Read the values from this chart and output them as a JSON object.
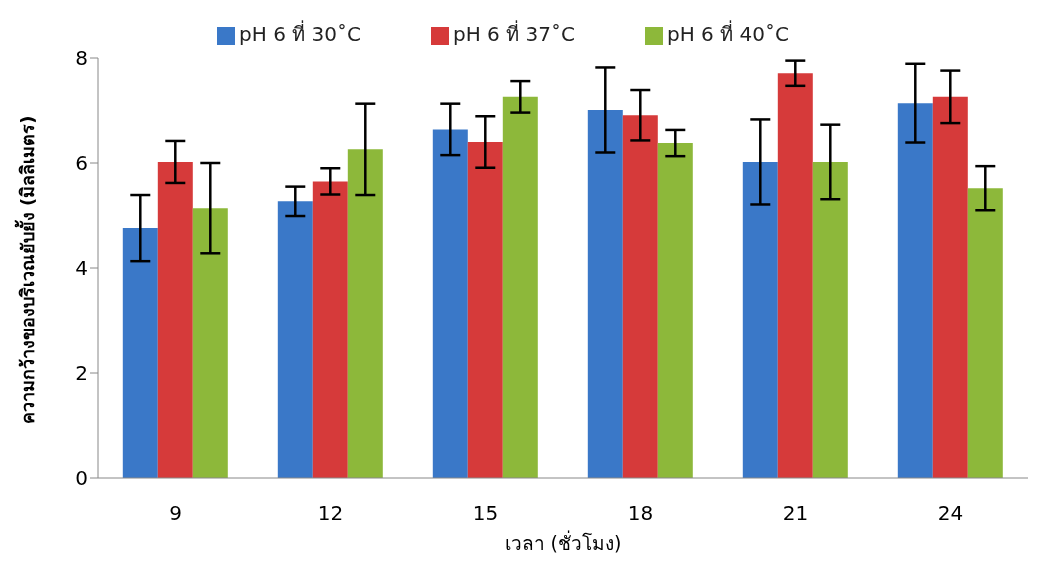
{
  "chart_data": {
    "type": "bar",
    "xlabel": "เวลา (ชั่วโมง)",
    "ylabel": "ความกว้างของบริเวณยับยั้ง (มิลลิเมตร)",
    "categories": [
      "9",
      "12",
      "15",
      "18",
      "21",
      "24"
    ],
    "series": [
      {
        "name": "pH 6 ที่ 30˚C",
        "color": "#3a78c8",
        "values": [
          4.76,
          5.27,
          6.64,
          7.01,
          6.02,
          7.14
        ],
        "errors": [
          0.63,
          0.28,
          0.49,
          0.81,
          0.81,
          0.75
        ]
      },
      {
        "name": "pH 6 ที่ 37˚C",
        "color": "#d63a3a",
        "values": [
          6.02,
          5.65,
          6.4,
          6.91,
          7.71,
          7.26
        ],
        "errors": [
          0.4,
          0.25,
          0.49,
          0.48,
          0.24,
          0.5
        ]
      },
      {
        "name": "pH 6 ที่ 40˚C",
        "color": "#8db83a",
        "values": [
          5.14,
          6.26,
          7.26,
          6.38,
          6.02,
          5.52
        ],
        "errors": [
          0.86,
          0.87,
          0.3,
          0.25,
          0.71,
          0.42
        ]
      }
    ],
    "ylim": [
      0,
      8
    ],
    "yticks": [
      0,
      2,
      4,
      6,
      8
    ],
    "grid": false,
    "legend": "top"
  }
}
